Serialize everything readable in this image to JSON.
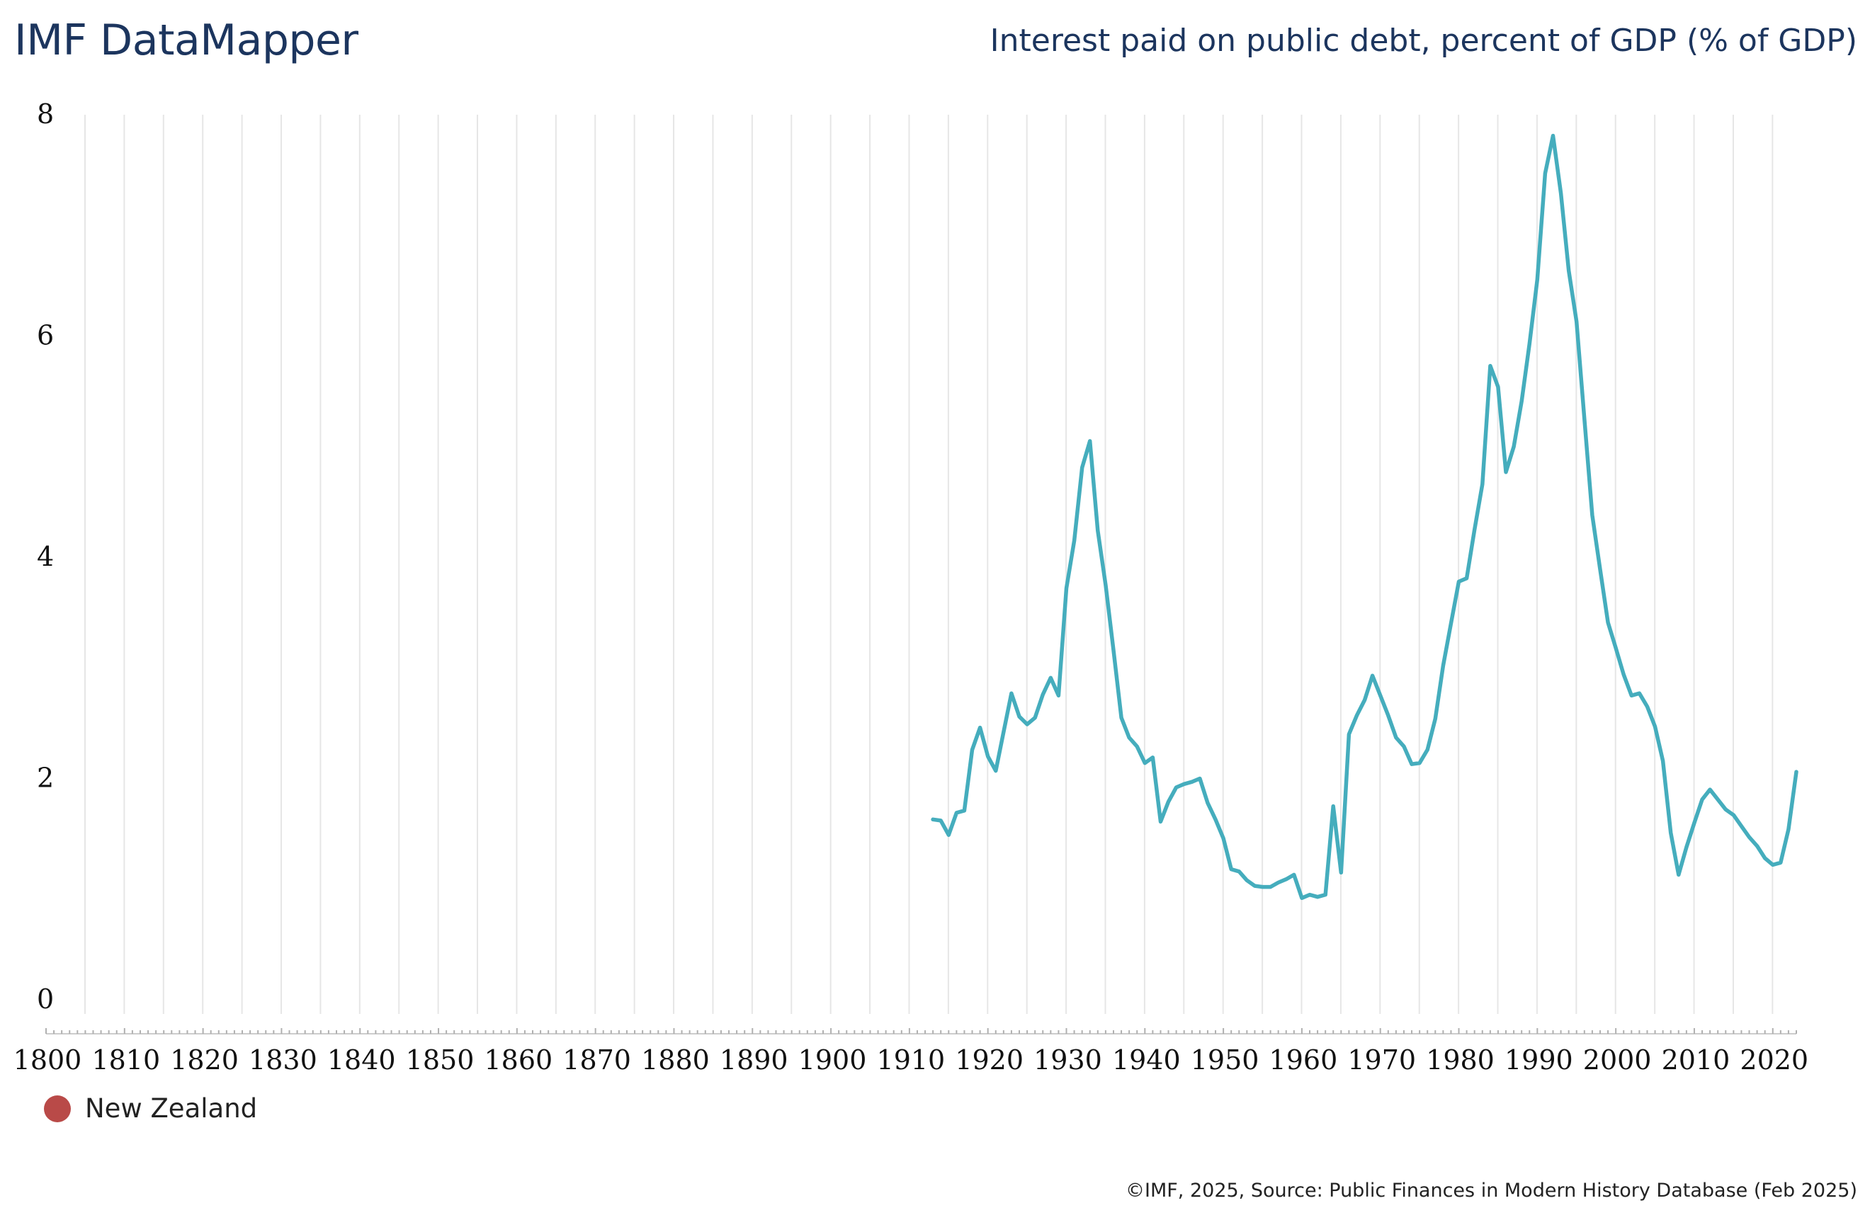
{
  "header": {
    "brand": "IMF DataMapper",
    "title": "Interest paid on public debt, percent of GDP (% of GDP)"
  },
  "legend": {
    "label": "New Zealand",
    "swatch_color": "#b94a48"
  },
  "footer": {
    "source": "©IMF, 2025, Source: Public Finances in Modern History Database (Feb 2025)"
  },
  "colors": {
    "line": "#45adbd",
    "grid": "#e6e6e6",
    "title": "#1c355e"
  },
  "chart_data": {
    "type": "line",
    "title": "Interest paid on public debt, percent of GDP (% of GDP)",
    "xlabel": "",
    "ylabel": "",
    "xlim": [
      1800,
      2023
    ],
    "ylim": [
      0,
      8
    ],
    "yticks": [
      0,
      2,
      4,
      6,
      8
    ],
    "xticks": [
      1800,
      1810,
      1820,
      1830,
      1840,
      1850,
      1860,
      1870,
      1880,
      1890,
      1900,
      1910,
      1920,
      1930,
      1940,
      1950,
      1960,
      1970,
      1980,
      1990,
      2000,
      2010,
      2020
    ],
    "grid": "vertical",
    "legend_position": "bottom-left",
    "series": [
      {
        "name": "New Zealand",
        "x": [
          1913,
          1914,
          1915,
          1916,
          1917,
          1918,
          1919,
          1920,
          1921,
          1922,
          1923,
          1924,
          1925,
          1926,
          1927,
          1928,
          1929,
          1930,
          1931,
          1932,
          1933,
          1934,
          1935,
          1936,
          1937,
          1938,
          1939,
          1940,
          1941,
          1942,
          1943,
          1944,
          1945,
          1946,
          1947,
          1948,
          1949,
          1950,
          1951,
          1952,
          1953,
          1954,
          1955,
          1956,
          1957,
          1958,
          1959,
          1960,
          1961,
          1962,
          1963,
          1964,
          1965,
          1966,
          1967,
          1968,
          1969,
          1970,
          1971,
          1972,
          1973,
          1974,
          1975,
          1976,
          1977,
          1978,
          1979,
          1980,
          1981,
          1982,
          1983,
          1984,
          1985,
          1986,
          1987,
          1988,
          1989,
          1990,
          1991,
          1992,
          1993,
          1994,
          1995,
          1996,
          1997,
          1998,
          1999,
          2000,
          2001,
          2002,
          2003,
          2004,
          2005,
          2006,
          2007,
          2008,
          2009,
          2010,
          2011,
          2012,
          2013,
          2014,
          2015,
          2016,
          2017,
          2018,
          2019,
          2020,
          2021,
          2022,
          2023
        ],
        "y": [
          1.63,
          1.62,
          1.49,
          1.69,
          1.71,
          2.26,
          2.46,
          2.2,
          2.07,
          2.42,
          2.77,
          2.56,
          2.49,
          2.55,
          2.76,
          2.91,
          2.75,
          3.72,
          4.15,
          4.81,
          5.05,
          4.24,
          3.75,
          3.16,
          2.55,
          2.37,
          2.29,
          2.14,
          2.19,
          1.61,
          1.79,
          1.92,
          1.95,
          1.97,
          2.0,
          1.78,
          1.63,
          1.46,
          1.18,
          1.16,
          1.08,
          1.03,
          1.02,
          1.02,
          1.06,
          1.09,
          1.13,
          0.92,
          0.95,
          0.93,
          0.95,
          1.75,
          1.15,
          2.4,
          2.57,
          2.71,
          2.93,
          2.75,
          2.57,
          2.37,
          2.29,
          2.13,
          2.14,
          2.26,
          2.54,
          3.02,
          3.4,
          3.78,
          3.81,
          4.25,
          4.66,
          5.73,
          5.54,
          4.77,
          5.0,
          5.41,
          5.93,
          6.51,
          7.47,
          7.81,
          7.29,
          6.59,
          6.13,
          5.25,
          4.38,
          3.89,
          3.41,
          3.18,
          2.94,
          2.75,
          2.77,
          2.65,
          2.47,
          2.16,
          1.51,
          1.13,
          1.38,
          1.6,
          1.81,
          1.9,
          1.81,
          1.72,
          1.67,
          1.57,
          1.47,
          1.39,
          1.28,
          1.22,
          1.24,
          1.54,
          2.06
        ]
      }
    ]
  }
}
